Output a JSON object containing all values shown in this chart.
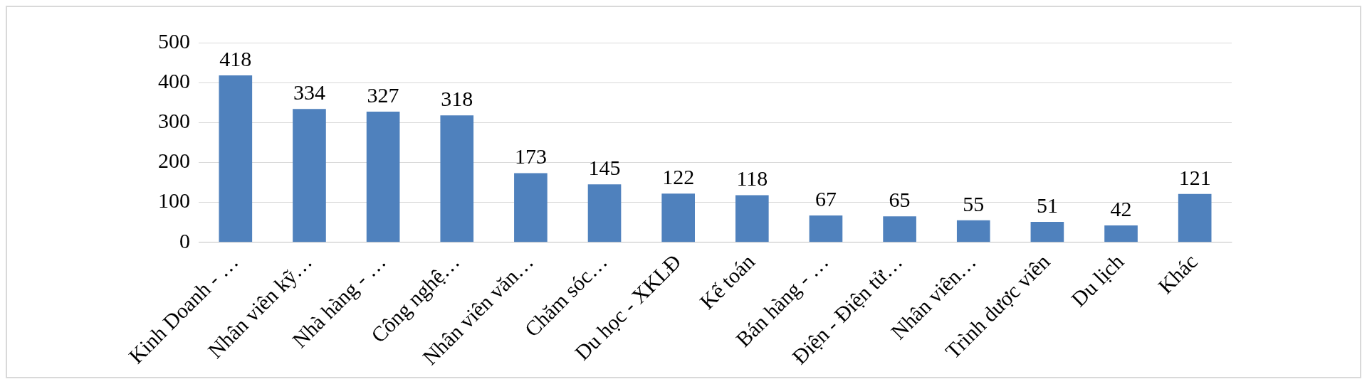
{
  "chart_data": {
    "type": "bar",
    "categories": [
      "Kinh Doanh - …",
      "Nhân viên kỹ…",
      "Nhà hàng - …",
      "Công nghệ…",
      "Nhân viên văn…",
      "Chăm sóc…",
      "Du học - XKLĐ",
      "Kế toán",
      "Bán hàng - …",
      "Điện - Điện tử…",
      "Nhân viên…",
      "Trình dược viên",
      "Du lịch",
      "Khác"
    ],
    "values": [
      418,
      334,
      327,
      318,
      173,
      145,
      122,
      118,
      67,
      65,
      55,
      51,
      42,
      121
    ],
    "color": "#4f81bd",
    "ylim": [
      0,
      500
    ],
    "yticks": [
      0,
      100,
      200,
      300,
      400,
      500
    ],
    "grid": "y",
    "data_labels": true
  }
}
